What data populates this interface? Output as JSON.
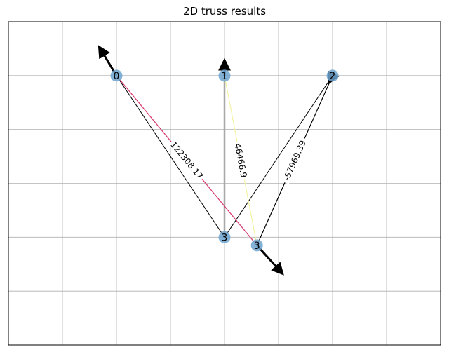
{
  "title": "2D truss results",
  "chart_data": {
    "type": "scatter",
    "title": "2D truss results",
    "xlabel": "",
    "ylabel": "",
    "xlim": [
      -2,
      6
    ],
    "ylim": [
      -5,
      1
    ],
    "grid": true,
    "show_tick_labels": false,
    "nodes": [
      {
        "id": "0",
        "x": 0,
        "y": 0
      },
      {
        "id": "1",
        "x": 2,
        "y": 0
      },
      {
        "id": "2",
        "x": 4,
        "y": 0
      },
      {
        "id": "3",
        "x": 2,
        "y": -3
      },
      {
        "id": "3",
        "x": 2.6,
        "y": -3.15
      }
    ],
    "members_undeformed": [
      {
        "from": 0,
        "to": 3
      },
      {
        "from": 1,
        "to": 3
      },
      {
        "from": 2,
        "to": 3
      }
    ],
    "members_deformed": [
      {
        "from": 0,
        "to": 4,
        "force": 122308.17,
        "label": "122308.17",
        "color": "#d6336c"
      },
      {
        "from": 1,
        "to": 4,
        "force": 46466.9,
        "label": "46466.9",
        "color": "#f4f3a4"
      },
      {
        "from": 2,
        "to": 4,
        "force": -57969.39,
        "label": "-57969.39",
        "color": "#000000"
      }
    ],
    "load_arrows": [
      {
        "x": 0,
        "y": 0,
        "dx": -0.3,
        "dy": 0.5
      },
      {
        "x": 2,
        "y": 0,
        "dx": 0,
        "dy": 0.25
      },
      {
        "x": 4,
        "y": 0,
        "dx": -0.05,
        "dy": -0.1
      },
      {
        "x": 2.6,
        "y": -3.15,
        "dx": 0.45,
        "dy": -0.5
      }
    ],
    "node_color": "#6fa5cf"
  }
}
